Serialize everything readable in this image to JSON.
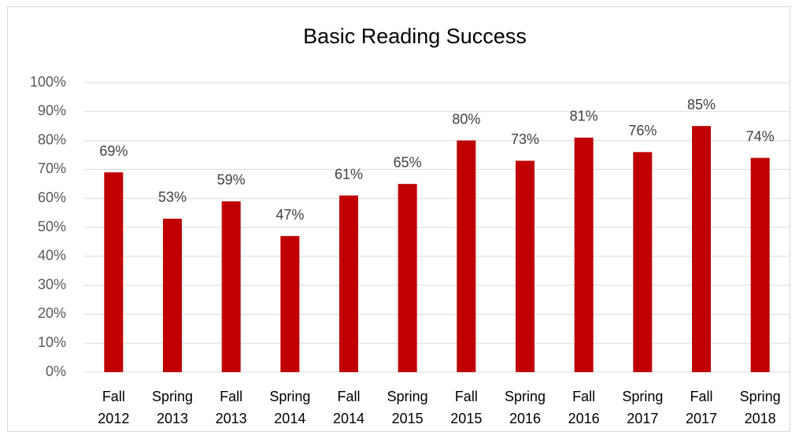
{
  "chart_data": {
    "type": "bar",
    "title": "Basic Reading Success",
    "categories": [
      "Fall 2012",
      "Spring 2013",
      "Fall 2013",
      "Spring 2014",
      "Fall 2014",
      "Spring 2015",
      "Fall 2015",
      "Spring 2016",
      "Fall 2016",
      "Spring 2017",
      "Fall 2017",
      "Spring 2018"
    ],
    "values": [
      69,
      53,
      59,
      47,
      61,
      65,
      80,
      73,
      81,
      76,
      85,
      74
    ],
    "value_labels": [
      "69%",
      "53%",
      "59%",
      "47%",
      "61%",
      "65%",
      "80%",
      "73%",
      "81%",
      "76%",
      "85%",
      "74%"
    ],
    "color": "#c00000",
    "ylim": [
      0,
      100
    ],
    "yticks": [
      {
        "value": 0,
        "label": "0%"
      },
      {
        "value": 10,
        "label": "10%"
      },
      {
        "value": 20,
        "label": "20%"
      },
      {
        "value": 30,
        "label": "30%"
      },
      {
        "value": 40,
        "label": "40%"
      },
      {
        "value": 50,
        "label": "50%"
      },
      {
        "value": 60,
        "label": "60%"
      },
      {
        "value": 70,
        "label": "70%"
      },
      {
        "value": 80,
        "label": "80%"
      },
      {
        "value": 90,
        "label": "90%"
      },
      {
        "value": 100,
        "label": "100%"
      }
    ],
    "grid": true
  }
}
